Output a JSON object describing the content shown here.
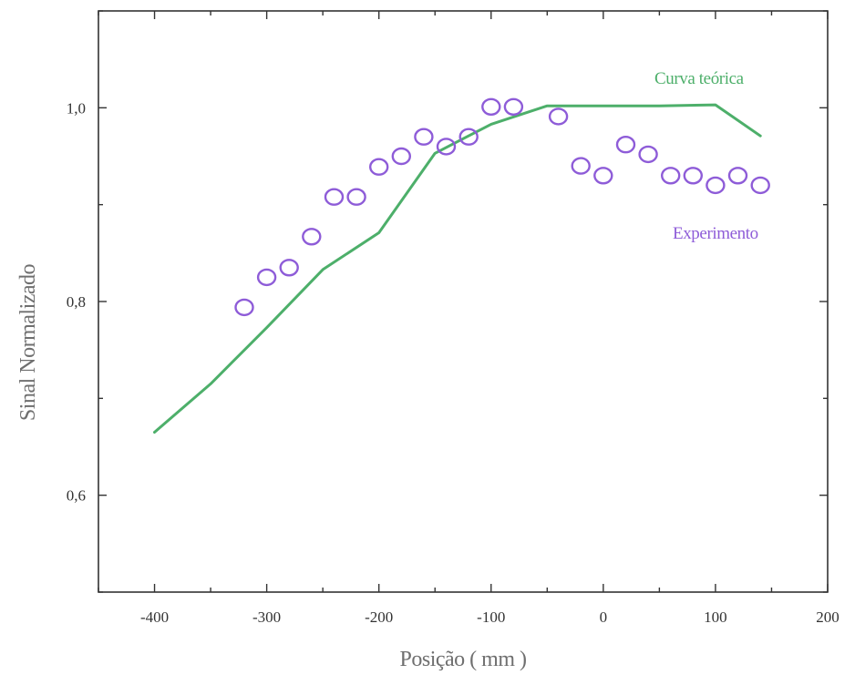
{
  "chart_data": {
    "type": "line",
    "title": "",
    "xlabel": "Posição ( mm )",
    "ylabel": "Sinal Normalizado",
    "xlim": [
      -450,
      200
    ],
    "ylim": [
      0.5,
      1.1
    ],
    "xticks": [
      -400,
      -300,
      -200,
      -100,
      0,
      100,
      200
    ],
    "xtick_labels": [
      "-400",
      "-300",
      "-200",
      "-100",
      "0",
      "100",
      "200"
    ],
    "yticks": [
      0.6,
      0.8,
      1.0
    ],
    "ytick_labels": [
      "0,6",
      "0,8",
      "1,0"
    ],
    "grid": false,
    "series": [
      {
        "name": "Curva teórica",
        "kind": "line",
        "color": "#4daf6a",
        "x": [
          -400,
          -350,
          -300,
          -250,
          -200,
          -150,
          -100,
          -50,
          0,
          50,
          100,
          140
        ],
        "y": [
          0.665,
          0.715,
          0.773,
          0.833,
          0.871,
          0.953,
          0.983,
          1.002,
          1.002,
          1.002,
          1.003,
          0.971
        ]
      },
      {
        "name": "Experimento",
        "kind": "scatter",
        "marker": "open-circle",
        "color": "#8e5cd8",
        "x": [
          -320,
          -300,
          -280,
          -260,
          -240,
          -220,
          -200,
          -180,
          -160,
          -140,
          -120,
          -100,
          -80,
          -40,
          -20,
          0,
          20,
          40,
          60,
          80,
          100,
          120,
          140
        ],
        "y": [
          0.794,
          0.825,
          0.835,
          0.867,
          0.908,
          0.908,
          0.939,
          0.95,
          0.97,
          0.96,
          0.97,
          1.001,
          1.001,
          0.991,
          0.94,
          0.93,
          0.962,
          0.952,
          0.93,
          0.93,
          0.92,
          0.93,
          0.92
        ]
      }
    ]
  }
}
